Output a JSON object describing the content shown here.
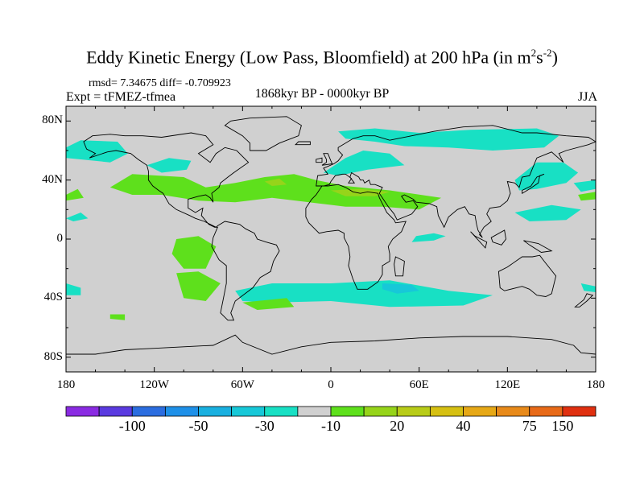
{
  "title": {
    "main": "Eddy Kinetic Energy (Low Pass, Bloomfield) at 200 hPa (in m",
    "sup1": "2",
    "mid": "s",
    "sup2": "-2",
    "close": ")"
  },
  "stats_line": "rmsd= 7.34675 diff= -0.709923",
  "expt_line": "Expt = tFMEZ-tfmea",
  "period": "1868kyr BP - 0000kyr BP",
  "season": "JJA",
  "lat_labels": [
    "80N",
    "40N",
    "0",
    "40S",
    "80S"
  ],
  "lat_values": [
    80,
    40,
    0,
    -40,
    -80
  ],
  "lon_labels": [
    "180",
    "120W",
    "60W",
    "0",
    "60E",
    "120E",
    "180"
  ],
  "lon_values": [
    -180,
    -120,
    -60,
    0,
    60,
    120,
    180
  ],
  "colorbar": {
    "colors": [
      "#8a2be2",
      "#5a3ae0",
      "#2b6de0",
      "#1e90e8",
      "#19b0e0",
      "#17c8d8",
      "#18e0c4",
      "#d0d0d0",
      "#5ee01c",
      "#96d41a",
      "#b8cc18",
      "#d6c012",
      "#e6a816",
      "#e88a1a",
      "#e86a18",
      "#e03010"
    ],
    "labels": [
      "-100",
      "-50",
      "-30",
      "-10",
      "20",
      "40",
      "75",
      "150"
    ],
    "label_boundaries": [
      2,
      4,
      6,
      8,
      10,
      12,
      14,
      15
    ]
  },
  "map_colors": {
    "background": "#d0d0d0",
    "negative": "#18e0c4",
    "positive": "#5ee01c",
    "strong_positive": "#96d41a",
    "strong_negative": "#17c8d8",
    "coast": "#000000"
  }
}
